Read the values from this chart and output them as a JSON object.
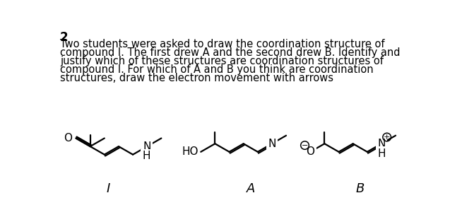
{
  "title_num": "2",
  "text_lines": [
    "Two students were asked to draw the coordination structure of",
    "compound I. The first drew A and the second drew B. Identify and",
    "justify which of these structures are coordination structures of",
    "compound I. For which of A and B you think are coordination",
    "structures, draw the electron movement with arrows"
  ],
  "bg_color": "#ffffff",
  "text_color": "#000000",
  "font_size_title": 12,
  "font_size_body": 10.5,
  "font_size_atom": 11,
  "label_I": "I",
  "label_A": "A",
  "label_B": "B"
}
